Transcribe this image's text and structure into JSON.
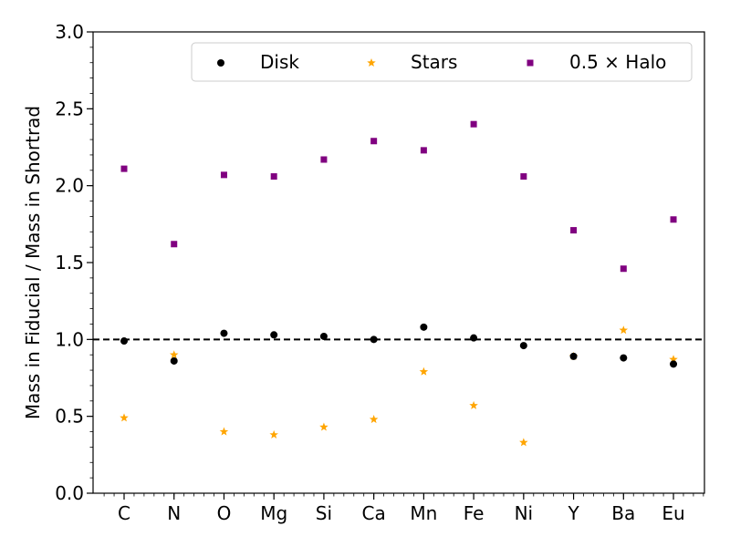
{
  "chart_data": {
    "type": "scatter",
    "title": "",
    "xlabel": "",
    "ylabel": "Mass in Fiducial / Mass in Shortrad",
    "categories": [
      "C",
      "N",
      "O",
      "Mg",
      "Si",
      "Ca",
      "Mn",
      "Fe",
      "Ni",
      "Y",
      "Ba",
      "Eu"
    ],
    "ylim": [
      0.0,
      3.0
    ],
    "yticks": [
      "0.0",
      "0.5",
      "1.0",
      "1.5",
      "2.0",
      "2.5",
      "3.0"
    ],
    "reference_line": {
      "y": 1.0,
      "style": "dashed",
      "color": "#000000"
    },
    "legend_position": "top-right",
    "grid": false,
    "series": [
      {
        "name": "Disk",
        "marker": "circle",
        "color": "#000000",
        "values": [
          0.99,
          0.86,
          1.04,
          1.03,
          1.02,
          1.0,
          1.08,
          1.01,
          0.96,
          0.89,
          0.88,
          0.84
        ]
      },
      {
        "name": "Stars",
        "marker": "star",
        "color": "#ffa500",
        "values": [
          0.49,
          0.9,
          0.4,
          0.38,
          0.43,
          0.48,
          0.79,
          0.57,
          0.33,
          0.89,
          1.06,
          0.87
        ]
      },
      {
        "name": "0.5 × Halo",
        "marker": "square",
        "color": "#800080",
        "values": [
          2.11,
          1.62,
          2.07,
          2.06,
          2.17,
          2.29,
          2.23,
          2.4,
          2.06,
          1.71,
          1.46,
          1.78
        ]
      }
    ]
  }
}
